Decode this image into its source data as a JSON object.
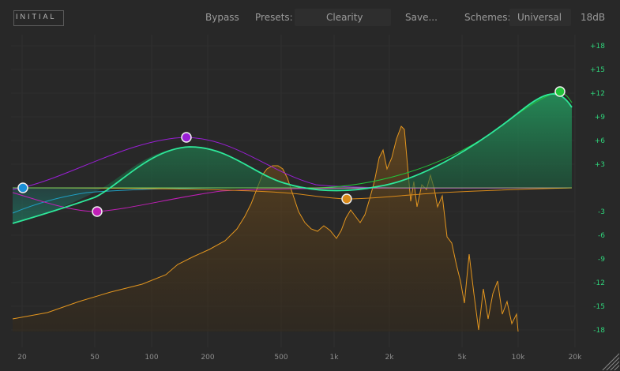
{
  "app": {
    "logo": "INITIAL",
    "bypass_label": "Bypass",
    "presets_label": "Presets:",
    "preset_value": "Clearity",
    "save_label": "Save...",
    "schemes_label": "Schemes:",
    "scheme_value": "Universal",
    "range_label": "18dB"
  },
  "graph": {
    "y_ticks": [
      "+18",
      "+15",
      "+12",
      "+9",
      "+6",
      "+3",
      "-3",
      "-6",
      "-9",
      "-12",
      "-15",
      "-18"
    ],
    "x_ticks": [
      "20",
      "50",
      "100",
      "200",
      "500",
      "1k",
      "2k",
      "5k",
      "10k",
      "20k"
    ]
  },
  "bands": [
    {
      "name": "low-shelf",
      "color": "#1a8fd6"
    },
    {
      "name": "low-dip",
      "color": "#c21fb8"
    },
    {
      "name": "mid-boost",
      "color": "#9a1fd6"
    },
    {
      "name": "mid-cut",
      "color": "#d98a1a"
    },
    {
      "name": "high-shelf",
      "color": "#22c43a"
    }
  ],
  "colors": {
    "accent": "#2ee89a",
    "spectrum": "#e3961f",
    "eq_fill": "#1f6e45"
  }
}
